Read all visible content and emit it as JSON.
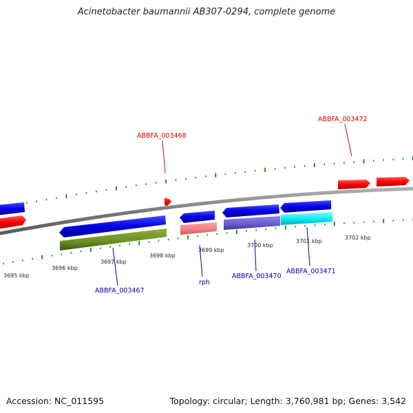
{
  "title": "Acinetobacter baumannii AB307-0294, complete genome",
  "footer": {
    "accession": "Accession: NC_011595",
    "topology": "Topology: circular; Length: 3,760,981 bp; Genes: 3,542"
  },
  "colors": {
    "forward_cds": "#ff0000",
    "reverse_cds": "#0000e6",
    "forward_label": "#cc0000",
    "reverse_label": "#0000aa",
    "tick": "#2a8a2a",
    "backbone": "#888888",
    "cog_olive": "#6b8e23",
    "cog_pink": "#f08080",
    "cog_slate": "#6a5acd",
    "cog_cyan": "#00e5ee"
  },
  "ticks": [
    {
      "label": "3695 kbp"
    },
    {
      "label": "3696 kbp"
    },
    {
      "label": "3697 kbp"
    },
    {
      "label": "3698 kbp"
    },
    {
      "label": "3699 kbp"
    },
    {
      "label": "3700 kbp"
    },
    {
      "label": "3701 kbp"
    },
    {
      "label": "3702 kbp"
    }
  ],
  "gene_labels": [
    {
      "name": "ABBFA_003468",
      "strand": "forward"
    },
    {
      "name": "ABBFA_003472",
      "strand": "forward"
    },
    {
      "name": "ABBFA_003467",
      "strand": "reverse"
    },
    {
      "name": "rph",
      "strand": "reverse"
    },
    {
      "name": "ABBFA_003470",
      "strand": "reverse"
    },
    {
      "name": "ABBFA_003471",
      "strand": "reverse"
    }
  ]
}
